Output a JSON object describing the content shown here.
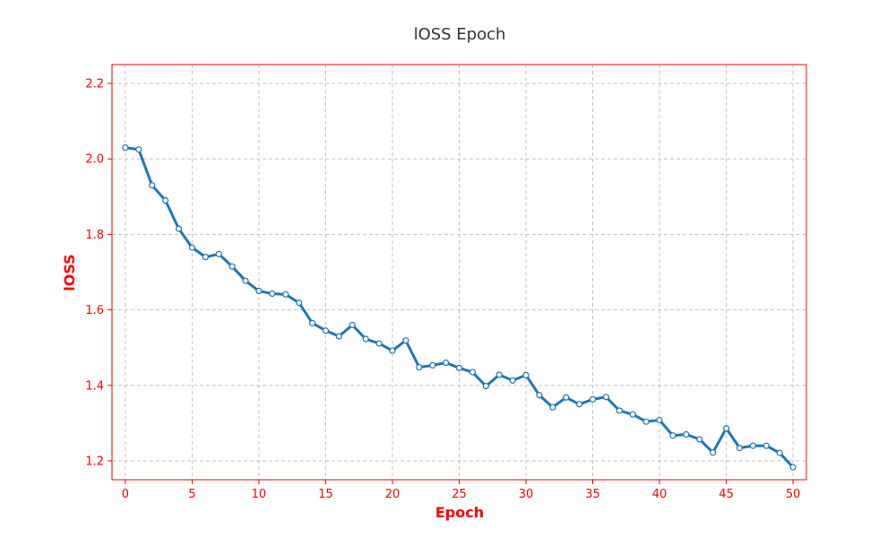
{
  "chart_data": {
    "type": "line",
    "title": "lOSS Epoch",
    "xlabel": "Epoch",
    "ylabel": "lOSS",
    "xlim": [
      -1,
      51
    ],
    "ylim": [
      1.15,
      2.25
    ],
    "xticks": [
      0,
      5,
      10,
      15,
      20,
      25,
      30,
      35,
      40,
      45,
      50
    ],
    "yticks": [
      1.2,
      1.4,
      1.6,
      1.8,
      2.0,
      2.2
    ],
    "grid": true,
    "colors": {
      "line": "#1f77b4",
      "marker_fill": "#ffffff",
      "accent": "#ff0000",
      "frame": "#ff0000",
      "title": "#333333"
    },
    "series": [
      {
        "x": [
          0,
          1,
          2,
          3,
          4,
          5,
          6,
          7,
          8,
          9,
          10,
          11,
          12,
          13,
          14,
          15,
          16,
          17,
          18,
          19,
          20,
          21,
          22,
          23,
          24,
          25,
          26,
          27,
          28,
          29,
          30,
          31,
          32,
          33,
          34,
          35,
          36,
          37,
          38,
          39,
          40,
          41,
          42,
          43,
          44,
          45,
          46,
          47,
          48,
          49,
          50
        ],
        "values": [
          2.03,
          2.025,
          1.93,
          1.89,
          1.815,
          1.765,
          1.74,
          1.748,
          1.715,
          1.677,
          1.65,
          1.643,
          1.641,
          1.619,
          1.565,
          1.545,
          1.53,
          1.56,
          1.523,
          1.511,
          1.492,
          1.519,
          1.448,
          1.453,
          1.46,
          1.446,
          1.435,
          1.398,
          1.428,
          1.413,
          1.427,
          1.374,
          1.342,
          1.368,
          1.35,
          1.363,
          1.369,
          1.333,
          1.323,
          1.304,
          1.308,
          1.267,
          1.27,
          1.257,
          1.222,
          1.286,
          1.234,
          1.24,
          1.24,
          1.221,
          1.183
        ]
      }
    ]
  }
}
